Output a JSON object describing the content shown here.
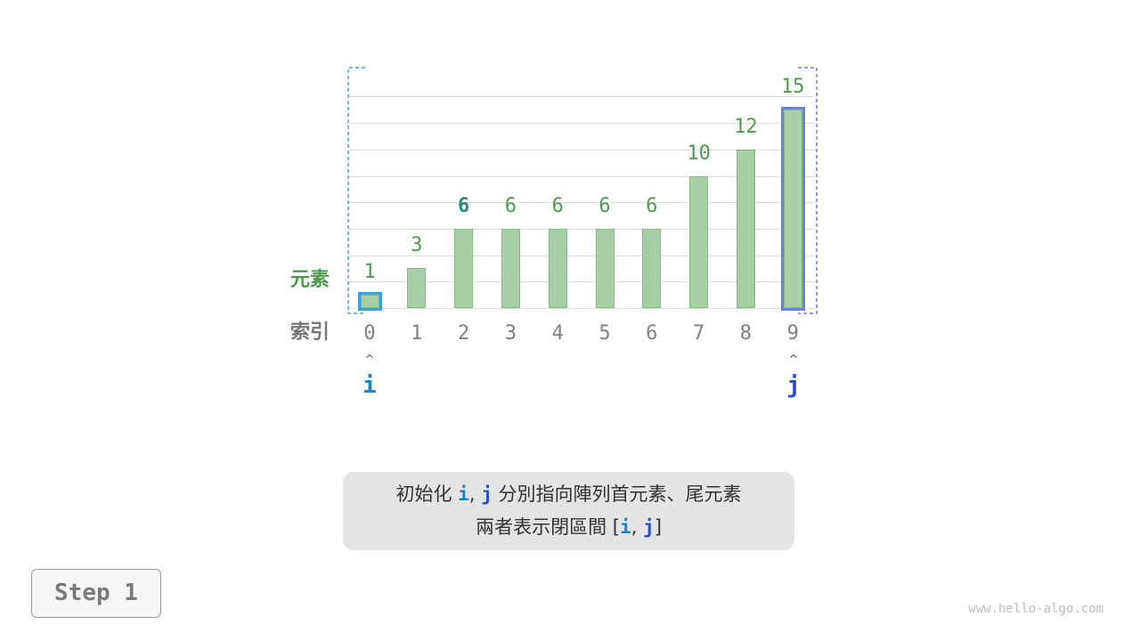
{
  "array": {
    "values": [
      1,
      3,
      6,
      6,
      6,
      6,
      6,
      10,
      12,
      15
    ],
    "indices": [
      "0",
      "1",
      "2",
      "3",
      "4",
      "5",
      "6",
      "7",
      "8",
      "9"
    ],
    "emphasized_value_index": 2,
    "element_row_label": "元素",
    "index_row_label": "索引"
  },
  "pointers": {
    "i": {
      "label": "i",
      "index": 0,
      "color": "#1a85c8"
    },
    "j": {
      "label": "j",
      "index": 9,
      "color": "#2d4fcc"
    },
    "arrow": "^"
  },
  "caption": {
    "line1_prefix": "初始化",
    "i": "i",
    "comma": ",",
    "j": "j",
    "line1_suffix": "分別指向陣列首元素、尾元素",
    "line2_prefix": "兩者表示閉區間",
    "open_bracket": "[",
    "close_bracket": "]"
  },
  "step_label": "Step 1",
  "watermark": "www.hello-algo.com",
  "colors": {
    "bar_fill": "#a6cfa6",
    "value_label": "#4f9a4f",
    "emphasized_value": "#2e8b7a",
    "i_bracket": "#3fa0e0",
    "j_bracket": "#6b7fde"
  }
}
